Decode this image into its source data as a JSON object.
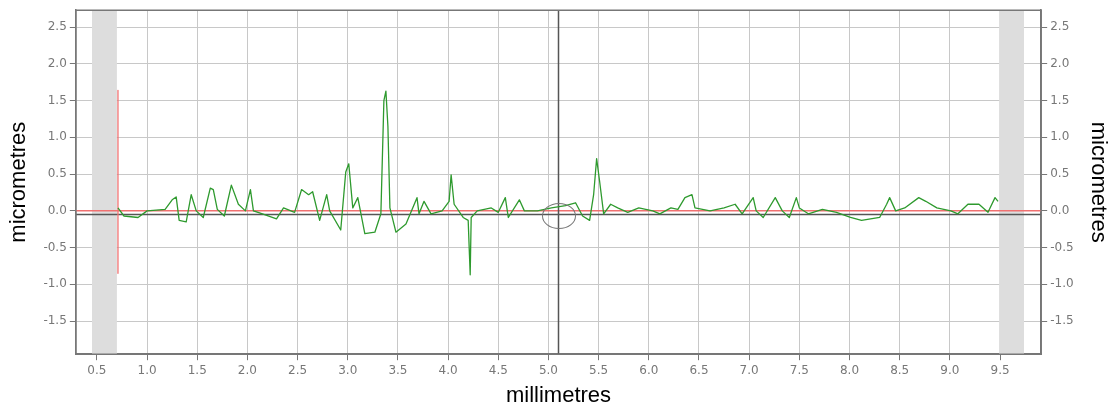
{
  "chart_data": {
    "type": "line",
    "xlabel": "millimetres",
    "ylabel": "micrometres",
    "y2label": "micrometres",
    "x": [
      0.71,
      0.77,
      0.91,
      1.0,
      1.18,
      1.25,
      1.29,
      1.32,
      1.39,
      1.44,
      1.49,
      1.56,
      1.63,
      1.66,
      1.7,
      1.77,
      1.84,
      1.91,
      1.98,
      2.03,
      2.06,
      2.15,
      2.29,
      2.36,
      2.47,
      2.54,
      2.61,
      2.65,
      2.72,
      2.79,
      2.82,
      2.93,
      2.98,
      3.01,
      3.05,
      3.1,
      3.17,
      3.27,
      3.33,
      3.36,
      3.38,
      3.4,
      3.42,
      3.48,
      3.58,
      3.69,
      3.71,
      3.76,
      3.83,
      3.94,
      4.01,
      4.03,
      4.06,
      4.15,
      4.2,
      4.22,
      4.23,
      4.29,
      4.43,
      4.5,
      4.57,
      4.6,
      4.71,
      4.76,
      4.89,
      5.03,
      5.17,
      5.27,
      5.34,
      5.41,
      5.45,
      5.48,
      5.51,
      5.55,
      5.62,
      5.69,
      5.79,
      5.9,
      6.04,
      6.11,
      6.22,
      6.29,
      6.36,
      6.43,
      6.46,
      6.61,
      6.75,
      6.86,
      6.93,
      7.04,
      7.07,
      7.14,
      7.26,
      7.33,
      7.4,
      7.47,
      7.5,
      7.59,
      7.73,
      7.87,
      8.01,
      8.12,
      8.3,
      8.37,
      8.4,
      8.46,
      8.55,
      8.69,
      8.76,
      8.87,
      9.01,
      9.08,
      9.18,
      9.29,
      9.38,
      9.45,
      9.48
    ],
    "series": [
      {
        "color": "#2e9a2e",
        "values": [
          0.04,
          -0.07,
          -0.09,
          0.0,
          0.02,
          0.15,
          0.19,
          -0.13,
          -0.15,
          0.22,
          0.0,
          -0.09,
          0.31,
          0.29,
          0.02,
          -0.07,
          0.35,
          0.09,
          0.0,
          0.29,
          0.0,
          -0.04,
          -0.11,
          0.04,
          -0.02,
          0.29,
          0.22,
          0.26,
          -0.13,
          0.22,
          0.0,
          -0.26,
          0.53,
          0.64,
          0.04,
          0.18,
          -0.31,
          -0.29,
          -0.04,
          1.5,
          1.63,
          1.15,
          0.04,
          -0.29,
          -0.18,
          0.18,
          -0.04,
          0.13,
          -0.04,
          0.0,
          0.13,
          0.49,
          0.09,
          -0.09,
          -0.13,
          -0.87,
          -0.09,
          0.0,
          0.04,
          -0.02,
          0.18,
          -0.09,
          0.15,
          0.0,
          0.0,
          0.04,
          0.07,
          0.11,
          -0.07,
          -0.13,
          0.22,
          0.71,
          0.4,
          -0.04,
          0.09,
          0.04,
          -0.02,
          0.04,
          0.0,
          -0.04,
          0.04,
          0.02,
          0.18,
          0.22,
          0.04,
          0.0,
          0.04,
          0.09,
          -0.04,
          0.18,
          0.0,
          -0.09,
          0.18,
          0.0,
          -0.09,
          0.18,
          0.04,
          -0.04,
          0.02,
          -0.02,
          -0.09,
          -0.13,
          -0.09,
          0.09,
          0.18,
          0.0,
          0.04,
          0.18,
          0.13,
          0.04,
          0.0,
          -0.04,
          0.09,
          0.09,
          -0.02,
          0.18,
          0.13
        ]
      },
      {
        "color": "#f07070",
        "x": [
          0.71,
          0.71
        ],
        "values": [
          1.64,
          -0.85
        ]
      }
    ],
    "xlim": [
      0.29,
      9.91
    ],
    "xticks": [
      {
        "value": 0.5,
        "label": "0.5"
      },
      {
        "value": 1,
        "label": "1.0"
      },
      {
        "value": 1.5,
        "label": "1.5"
      },
      {
        "value": 2,
        "label": "2.0"
      },
      {
        "value": 2.5,
        "label": "2.5"
      },
      {
        "value": 3,
        "label": "3.0"
      },
      {
        "value": 3.5,
        "label": "3.5"
      },
      {
        "value": 4,
        "label": "4.0"
      },
      {
        "value": 4.5,
        "label": "4.5"
      },
      {
        "value": 5,
        "label": "5.0"
      },
      {
        "value": 5.5,
        "label": "5.5"
      },
      {
        "value": 6,
        "label": "6.0"
      },
      {
        "value": 6.5,
        "label": "6.5"
      },
      {
        "value": 7,
        "label": "7.0"
      },
      {
        "value": 7.5,
        "label": "7.5"
      },
      {
        "value": 8,
        "label": "8.0"
      },
      {
        "value": 8.5,
        "label": "8.5"
      },
      {
        "value": 9,
        "label": "9.0"
      },
      {
        "value": 9.5,
        "label": "9.5"
      }
    ],
    "ylim": [
      -1.95,
      2.73
    ],
    "yticks": [
      {
        "value": -1.5,
        "label": "-1.5"
      },
      {
        "value": -1,
        "label": "-1.0"
      },
      {
        "value": -0.5,
        "label": "-0.5"
      },
      {
        "value": 0,
        "label": "0.0"
      },
      {
        "value": 0.5,
        "label": "0.5"
      },
      {
        "value": 1,
        "label": "1.0"
      },
      {
        "value": 1.5,
        "label": "1.5"
      },
      {
        "value": 2,
        "label": "2.0"
      },
      {
        "value": 2.5,
        "label": "2.5"
      }
    ],
    "y2lim": [
      -1.95,
      2.73
    ],
    "y2ticks": [
      {
        "value": -1.5,
        "label": "-1.5"
      },
      {
        "value": -1,
        "label": "-1.0"
      },
      {
        "value": -0.5,
        "label": "-0.5"
      },
      {
        "value": 0,
        "label": "0.0"
      },
      {
        "value": 0.5,
        "label": "0.5"
      },
      {
        "value": 1,
        "label": "1.0"
      },
      {
        "value": 1.5,
        "label": "1.5"
      },
      {
        "value": 2,
        "label": "2.0"
      },
      {
        "value": 2.5,
        "label": "2.5"
      }
    ],
    "ref_lines": [
      {
        "axis": "y",
        "value": 0,
        "color": "#f07070"
      },
      {
        "axis": "y",
        "value": -0.05,
        "color": "#555555"
      },
      {
        "axis": "x",
        "value": 5.1,
        "color": "#555555"
      }
    ],
    "bands": [
      {
        "axis": "x",
        "from": 0.45,
        "to": 0.7,
        "color": "#dddddd"
      },
      {
        "axis": "x",
        "from": 9.49,
        "to": 9.74,
        "color": "#dddddd"
      }
    ],
    "grid": true,
    "legend": false,
    "marker": "none",
    "line_style": "solid"
  }
}
